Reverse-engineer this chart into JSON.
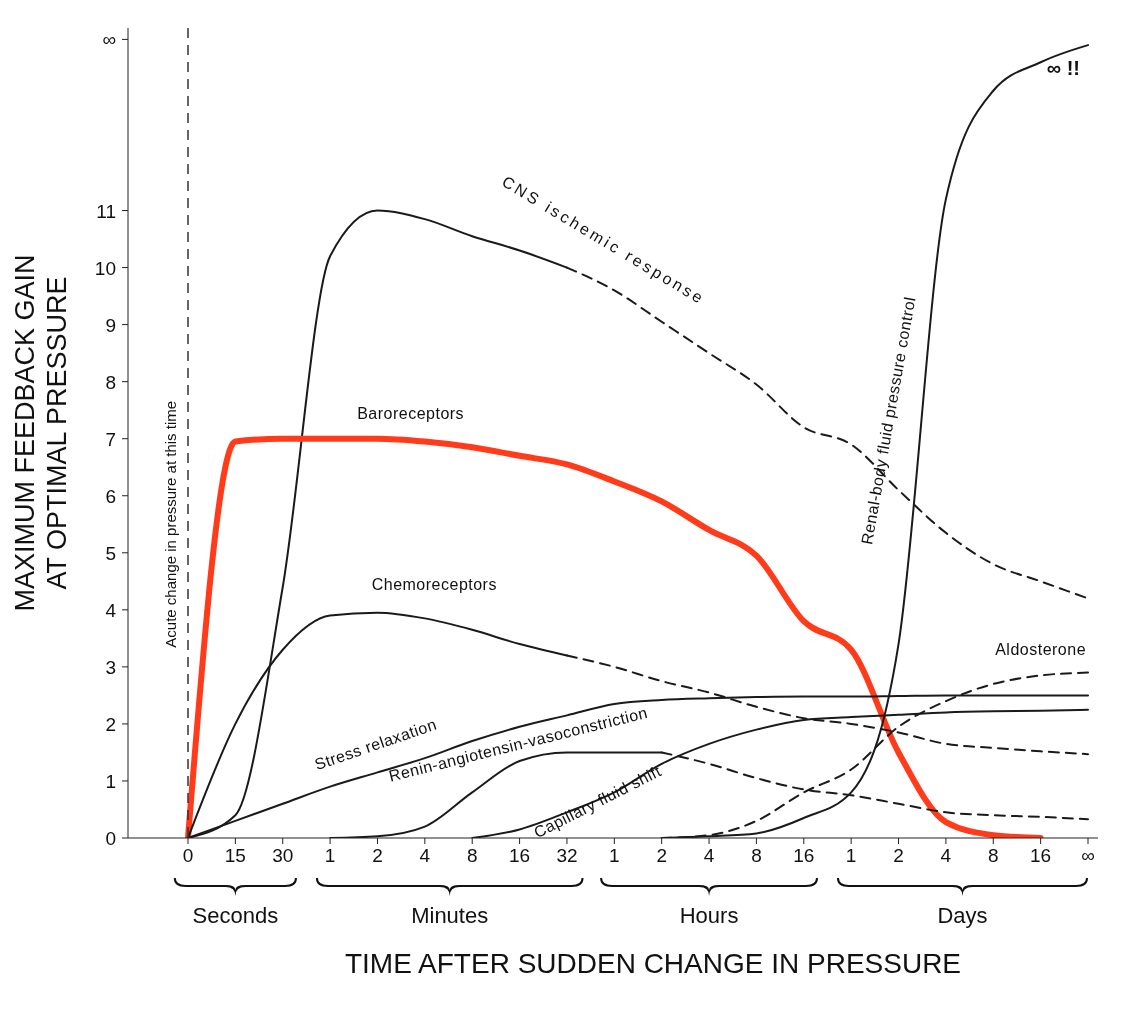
{
  "chart_data": {
    "type": "line",
    "xlabel": "TIME AFTER SUDDEN CHANGE IN PRESSURE",
    "ylabel": "MAXIMUM FEEDBACK GAIN AT OPTIMAL PRESSURE",
    "categories": [
      "0",
      "15",
      "30",
      "1",
      "2",
      "4",
      "8",
      "16",
      "32",
      "1",
      "2",
      "4",
      "8",
      "16",
      "1",
      "2",
      "4",
      "8",
      "16",
      "∞"
    ],
    "ylim": [
      0,
      14.2
    ],
    "yticks": [
      0,
      1,
      2,
      3,
      4,
      5,
      6,
      7,
      8,
      9,
      10,
      11,
      {
        "value": 14,
        "label": "∞"
      }
    ],
    "marker": "none",
    "series": [
      {
        "name": "CNS ischemic response",
        "color": "#1a1a1a",
        "line_style": "solid",
        "values": [
          0,
          0.4,
          4.4,
          10.2,
          11.0,
          10.85,
          10.55,
          10.3,
          10.0,
          null,
          null,
          null,
          null,
          null,
          null,
          null,
          null,
          null,
          null,
          null
        ]
      },
      {
        "color": "#1a1a1a",
        "line_style": "dashed",
        "values": [
          null,
          null,
          null,
          null,
          null,
          null,
          null,
          null,
          10.0,
          9.6,
          9.05,
          8.5,
          7.95,
          7.2,
          6.9,
          6.1,
          5.35,
          4.8,
          4.5,
          4.2
        ]
      },
      {
        "name": "Baroreceptors",
        "color": "#ff3b1a",
        "line_style": "solid",
        "values": [
          0,
          6.95,
          7.0,
          7.0,
          7.0,
          6.95,
          6.85,
          6.7,
          6.55,
          6.25,
          5.9,
          5.4,
          4.95,
          3.8,
          3.3,
          1.5,
          0.28,
          0.05,
          0,
          null
        ]
      },
      {
        "name": "Chemoreceptors",
        "color": "#1a1a1a",
        "line_style": "solid",
        "values": [
          0,
          2.0,
          3.3,
          3.9,
          3.95,
          3.85,
          3.65,
          3.4,
          3.2,
          null,
          null,
          null,
          null,
          null,
          null,
          null,
          null,
          null,
          null,
          null
        ]
      },
      {
        "color": "#1a1a1a",
        "line_style": "dashed",
        "values": [
          null,
          null,
          null,
          null,
          null,
          null,
          null,
          null,
          3.2,
          3.0,
          2.75,
          2.55,
          2.3,
          2.1,
          2.0,
          1.85,
          1.65,
          1.58,
          1.52,
          1.47
        ]
      },
      {
        "name": "Stress relaxation",
        "color": "#1a1a1a",
        "line_style": "solid",
        "values": [
          0,
          0.3,
          0.6,
          0.9,
          1.15,
          1.4,
          1.7,
          1.95,
          2.15,
          2.35,
          2.42,
          2.45,
          2.47,
          2.48,
          2.48,
          2.49,
          2.5,
          2.5,
          2.5,
          2.5
        ]
      },
      {
        "name": "Renin-angiotensin-vasoconstriction",
        "color": "#1a1a1a",
        "line_style": "solid",
        "values": [
          null,
          null,
          null,
          0,
          0.03,
          0.2,
          0.8,
          1.35,
          1.5,
          1.5,
          1.5,
          null,
          null,
          null,
          null,
          null,
          null,
          null,
          null,
          null
        ]
      },
      {
        "color": "#1a1a1a",
        "line_style": "dashed",
        "values": [
          null,
          null,
          null,
          null,
          null,
          null,
          null,
          null,
          null,
          null,
          1.5,
          1.3,
          1.05,
          0.85,
          0.75,
          0.6,
          0.45,
          0.4,
          0.37,
          0.33
        ]
      },
      {
        "name": "Capillary fluid shift",
        "color": "#1a1a1a",
        "line_style": "solid",
        "values": [
          null,
          null,
          null,
          null,
          null,
          null,
          0,
          0.15,
          0.45,
          0.8,
          1.3,
          1.65,
          1.9,
          2.07,
          2.12,
          2.16,
          2.2,
          2.22,
          2.23,
          2.25
        ]
      },
      {
        "name": "Aldosterone",
        "color": "#1a1a1a",
        "line_style": "dashed",
        "values": [
          null,
          null,
          null,
          null,
          null,
          null,
          null,
          null,
          null,
          null,
          0,
          0.05,
          0.3,
          0.8,
          1.2,
          1.95,
          2.4,
          2.7,
          2.85,
          2.9
        ]
      },
      {
        "name": "Renal-body fluid pressure control",
        "color": "#1a1a1a",
        "line_style": "solid",
        "values": [
          null,
          null,
          null,
          null,
          null,
          null,
          null,
          null,
          null,
          null,
          0,
          0.03,
          0.08,
          0.35,
          0.8,
          3.4,
          11.2,
          13.1,
          13.6,
          13.9
        ]
      }
    ],
    "ref_lines": [
      {
        "axis": "x",
        "value": "0",
        "label": "Acute change in pressure at this time",
        "color": "#333333",
        "line_style": "dashed"
      }
    ],
    "annotations": [
      "Seconds",
      "Minutes",
      "Hours",
      "Days",
      {
        "text": "∞ !!",
        "x": "∞",
        "y": 13.9
      }
    ]
  }
}
